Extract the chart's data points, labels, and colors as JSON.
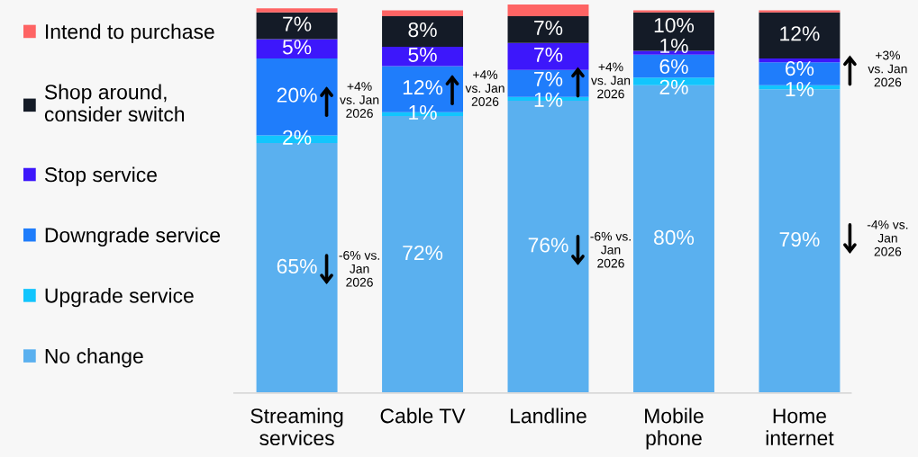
{
  "chart_data": {
    "type": "bar",
    "stacked": true,
    "categories": [
      "Streaming\nservices",
      "Cable TV",
      "Landline",
      "Mobile\nphone",
      "Home\ninternet"
    ],
    "series": [
      {
        "name": "No change",
        "color": "#5ab0ef",
        "values": [
          65,
          72,
          76,
          80,
          79
        ],
        "value_labels": [
          "65%",
          "72%",
          "76%",
          "80%",
          "79%"
        ]
      },
      {
        "name": "Upgrade service",
        "color": "#12c5fd",
        "values": [
          2,
          1,
          1,
          2,
          1
        ],
        "value_labels": [
          "2%",
          "1%",
          "1%",
          "2%",
          "1%"
        ]
      },
      {
        "name": "Downgrade service",
        "color": "#1f7dfb",
        "values": [
          20,
          12,
          7,
          6,
          6
        ],
        "value_labels": [
          "20%",
          "12%",
          "7%",
          "6%",
          "6%"
        ]
      },
      {
        "name": "Stop service",
        "color": "#3d17fb",
        "values": [
          5,
          5,
          7,
          1,
          1
        ],
        "value_labels": [
          "5%",
          "5%",
          "7%",
          "1%",
          null
        ]
      },
      {
        "name": "Shop around,\nconsider switch",
        "color": "#141b27",
        "values": [
          7,
          8,
          7,
          10,
          12
        ],
        "value_labels": [
          "7%",
          "8%",
          "7%",
          "10%",
          "12%"
        ]
      },
      {
        "name": "Intend to purchase",
        "color": "#fe6464",
        "values": [
          1,
          1.5,
          3,
          0.5,
          0.5
        ]
      }
    ],
    "legend": "left",
    "grid": false,
    "tick_labels": "x",
    "annotations": [
      "+4%\nvs. Jan\n2026",
      "-6% vs.\nJan\n2026",
      "+4%\nvs. Jan\n2026",
      "-6% vs.\nJan\n2026",
      "+4%\nvs. Jan\n2026",
      "+3%\nvs. Jan\n2026",
      "-4% vs.\nJan\n2026"
    ]
  }
}
